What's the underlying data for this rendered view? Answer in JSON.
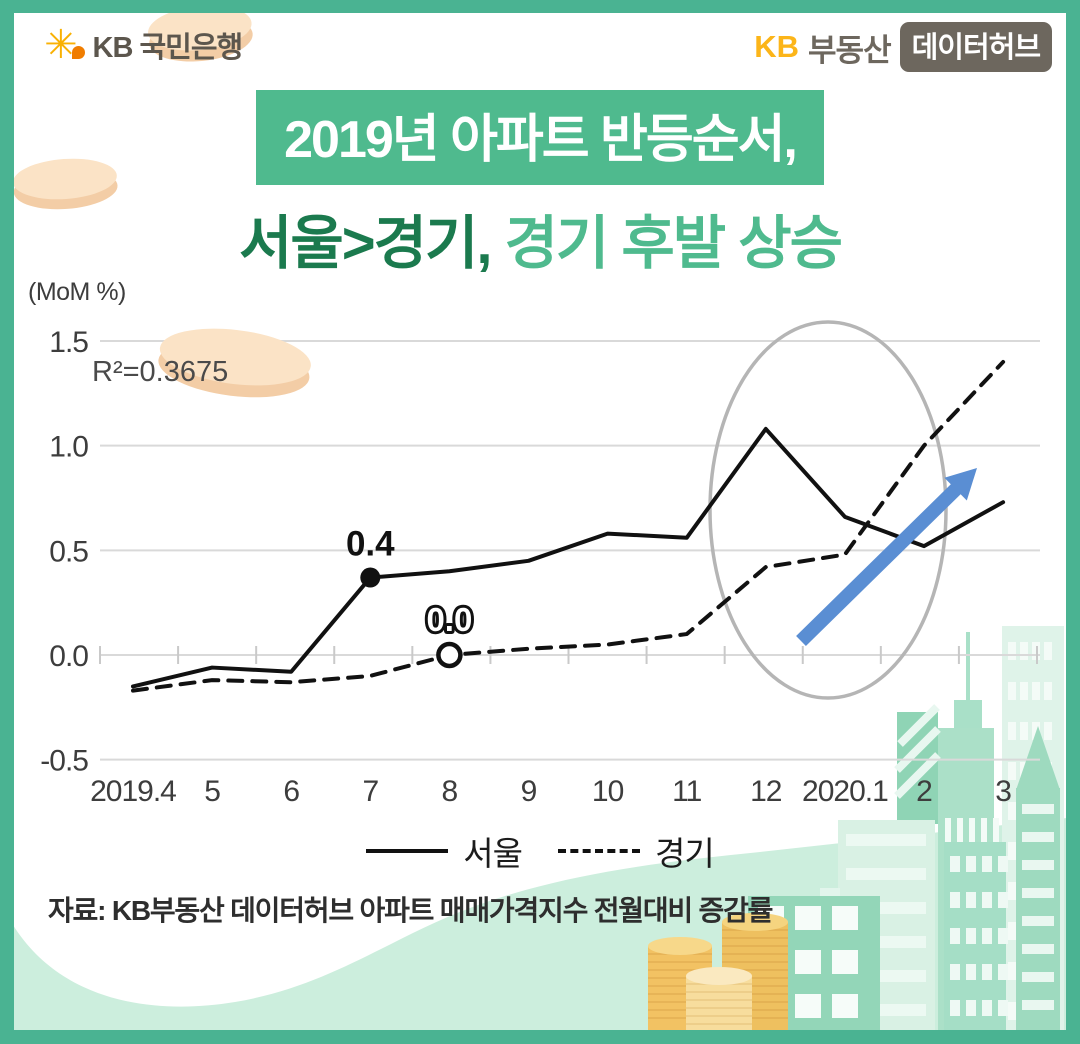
{
  "header": {
    "bank_logo": {
      "star_icon": "✳",
      "text": "KB 국민은행"
    },
    "hub_logo": {
      "kb": "KB",
      "brand": "부동산",
      "badge": "데이터허브"
    }
  },
  "title": {
    "line1": "2019년 아파트 반등순서,",
    "line2_dark": "서울>경기,",
    "line2_light": " 경기 후발 상승"
  },
  "chart_data": {
    "type": "line",
    "unit_label": "(MoM %)",
    "annotation": "R²=0.3675",
    "categories": [
      "2019.4",
      "5",
      "6",
      "7",
      "8",
      "9",
      "10",
      "11",
      "12",
      "2020.1",
      "2",
      "3"
    ],
    "series": [
      {
        "name": "서울",
        "style": "solid",
        "values": [
          -0.15,
          -0.06,
          -0.08,
          0.37,
          0.4,
          0.45,
          0.58,
          0.56,
          1.08,
          0.66,
          0.52,
          0.73
        ],
        "marker": {
          "index": 3,
          "label": "0.4"
        }
      },
      {
        "name": "경기",
        "style": "dashed",
        "values": [
          -0.17,
          -0.12,
          -0.13,
          -0.1,
          0.0,
          0.03,
          0.05,
          0.1,
          0.42,
          0.48,
          1.0,
          1.4
        ],
        "marker": {
          "index": 4,
          "label": "0.0"
        }
      }
    ],
    "yticks": [
      "1.5",
      "1.0",
      "0.5",
      "0.0",
      "-0.5"
    ],
    "ylim": [
      -0.5,
      1.5
    ],
    "grid": true,
    "legend_position": "bottom",
    "highlight": {
      "ellipse_over": [
        "12",
        "2020.1",
        "2"
      ],
      "arrow": "upward-trend"
    }
  },
  "legend": {
    "items": [
      {
        "label": "서울",
        "line": "solid"
      },
      {
        "label": "경기",
        "line": "dashed"
      }
    ]
  },
  "source": "자료: KB부동산 데이터허브 아파트 매매가격지수 전월대비 증감률",
  "colors": {
    "frame_teal": "#4ab392",
    "title_green": "#4fba8e",
    "dark_green": "#1b7a4e",
    "kb_yellow": "#fcb519",
    "badge_gray": "#6d675e",
    "line_black": "#111111",
    "arrow_blue": "#5a8ed3",
    "ellipse_gray": "#b5b5b5",
    "coin_peach": "#fbe3c6",
    "wave_mint": "#cceedd"
  }
}
